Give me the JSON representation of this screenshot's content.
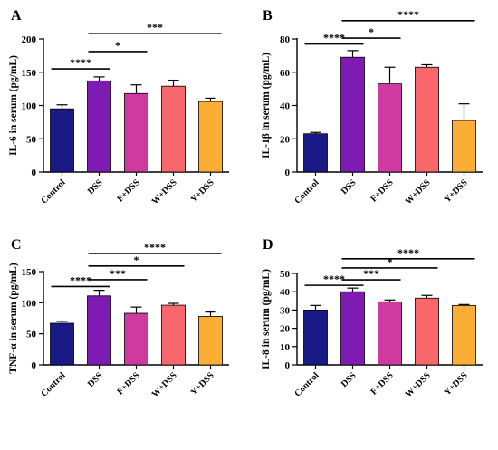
{
  "colors": {
    "Control": "#191a86",
    "DSS": "#7d1bb3",
    "F+DSS": "#cf3aa1",
    "W+DSS": "#f7676b",
    "Y+DSS": "#fbad35"
  },
  "chart_data": [
    {
      "letter": "A",
      "type": "bar",
      "ylabel": "IL-6  in serum (pg/mL)",
      "ylim": [
        0,
        200
      ],
      "ticks": [
        "0",
        "50",
        "100",
        "150",
        "200"
      ],
      "categories": [
        "Control",
        "DSS",
        "F+DSS",
        "W+DSS",
        "Y+DSS"
      ],
      "values": [
        95,
        137,
        118,
        129,
        106
      ],
      "errors": [
        6,
        6,
        13,
        9,
        5
      ],
      "significance": [
        {
          "label": "****",
          "from": 0,
          "to": 1,
          "y": 155
        },
        {
          "label": "*",
          "from": 1,
          "to": 2,
          "y": 181
        },
        {
          "label": "***",
          "from": 1,
          "to": 4,
          "y": 208
        }
      ]
    },
    {
      "letter": "B",
      "type": "bar",
      "ylabel": "IL-1β  in serum (pg/mL)",
      "ylim": [
        0,
        80
      ],
      "ticks": [
        "0",
        "20",
        "40",
        "60",
        "80"
      ],
      "categories": [
        "Control",
        "DSS",
        "F+DSS",
        "W+DSS",
        "Y+DSS"
      ],
      "values": [
        23,
        69,
        53,
        63,
        31
      ],
      "errors": [
        0.8,
        4,
        10,
        1.5,
        10
      ],
      "significance": [
        {
          "label": "****",
          "from": 0,
          "to": 1,
          "y": 77
        },
        {
          "label": "*",
          "from": 1,
          "to": 2,
          "y": 80.5
        },
        {
          "label": "****",
          "from": 1,
          "to": 4,
          "y": 91
        }
      ]
    },
    {
      "letter": "C",
      "type": "bar",
      "ylabel": "TNF-α  in serum (pg/mL)",
      "ylim": [
        0,
        150
      ],
      "ticks": [
        "0",
        "50",
        "100",
        "150"
      ],
      "categories": [
        "Control",
        "DSS",
        "F+DSS",
        "W+DSS",
        "Y+DSS"
      ],
      "values": [
        67,
        111,
        83,
        96,
        78
      ],
      "errors": [
        3,
        9,
        10,
        3,
        7
      ],
      "significance": [
        {
          "label": "****",
          "from": 0,
          "to": 1,
          "y": 126
        },
        {
          "label": "***",
          "from": 1,
          "to": 2,
          "y": 137
        },
        {
          "label": "*",
          "from": 1,
          "to": 3,
          "y": 159
        },
        {
          "label": "****",
          "from": 1,
          "to": 4,
          "y": 179
        }
      ]
    },
    {
      "letter": "D",
      "type": "bar",
      "ylabel": "IL-8  in serum (pg/mL)",
      "ylim": [
        0,
        50
      ],
      "ticks": [
        "0",
        "10",
        "20",
        "30",
        "40",
        "50"
      ],
      "categories": [
        "Control",
        "DSS",
        "F+DSS",
        "W+DSS",
        "Y+DSS"
      ],
      "values": [
        30,
        40,
        34.5,
        36.5,
        32.5
      ],
      "errors": [
        2.5,
        2,
        1,
        1.5,
        0.5
      ],
      "significance": [
        {
          "label": "****",
          "from": 0,
          "to": 1,
          "y": 43.5
        },
        {
          "label": "***",
          "from": 1,
          "to": 2,
          "y": 46.5
        },
        {
          "label": "*",
          "from": 1,
          "to": 3,
          "y": 53
        },
        {
          "label": "****",
          "from": 1,
          "to": 4,
          "y": 58
        }
      ]
    }
  ]
}
